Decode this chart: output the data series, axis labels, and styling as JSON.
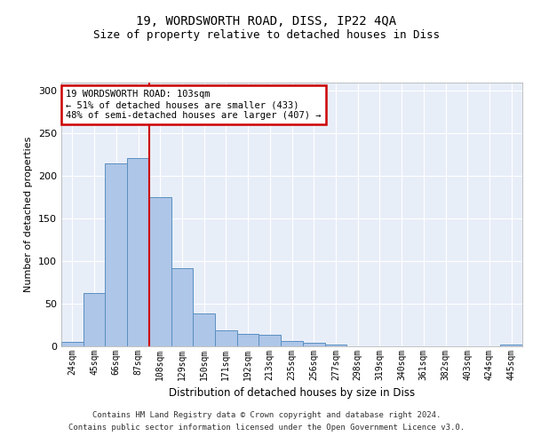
{
  "title1": "19, WORDSWORTH ROAD, DISS, IP22 4QA",
  "title2": "Size of property relative to detached houses in Diss",
  "xlabel": "Distribution of detached houses by size in Diss",
  "ylabel": "Number of detached properties",
  "categories": [
    "24sqm",
    "45sqm",
    "66sqm",
    "87sqm",
    "108sqm",
    "129sqm",
    "150sqm",
    "171sqm",
    "192sqm",
    "213sqm",
    "235sqm",
    "256sqm",
    "277sqm",
    "298sqm",
    "319sqm",
    "340sqm",
    "361sqm",
    "382sqm",
    "403sqm",
    "424sqm",
    "445sqm"
  ],
  "values": [
    5,
    63,
    215,
    221,
    175,
    92,
    39,
    19,
    15,
    14,
    6,
    4,
    2,
    0,
    0,
    0,
    0,
    0,
    0,
    0,
    2
  ],
  "bar_color": "#aec6e8",
  "bar_edge_color": "#5a8fc0",
  "redline_index": 3.5,
  "annotation_text": "19 WORDSWORTH ROAD: 103sqm\n← 51% of detached houses are smaller (433)\n48% of semi-detached houses are larger (407) →",
  "annotation_box_color": "#ffffff",
  "annotation_box_edge": "#cc0000",
  "footer1": "Contains HM Land Registry data © Crown copyright and database right 2024.",
  "footer2": "Contains public sector information licensed under the Open Government Licence v3.0.",
  "ylim": [
    0,
    310
  ],
  "yticks": [
    0,
    50,
    100,
    150,
    200,
    250,
    300
  ],
  "plot_bg": "#e8eef8",
  "fig_bg": "#ffffff"
}
